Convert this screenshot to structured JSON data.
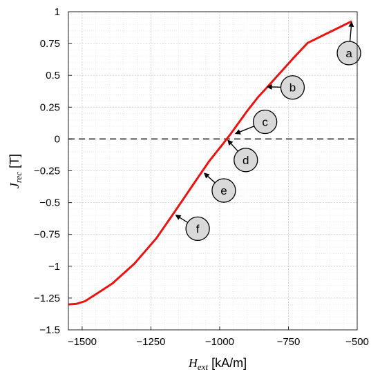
{
  "chart_data": {
    "type": "line",
    "title": "",
    "xlabel": {
      "symbol": "H",
      "subscript": "ext",
      "unit": " [kA/m]"
    },
    "ylabel": {
      "symbol": "J",
      "subscript": "rec",
      "unit": " [T]"
    },
    "xlim": [
      -1550,
      -500
    ],
    "ylim": [
      -1.5,
      1
    ],
    "x_ticks": [
      -1500,
      -1250,
      -1000,
      -750,
      -500
    ],
    "x_tick_labels": [
      "−1500",
      "−1250",
      "−1000",
      "−750",
      "−500"
    ],
    "y_ticks": [
      1,
      0.75,
      0.5,
      0.25,
      0,
      -0.25,
      -0.5,
      -0.75,
      -1,
      -1.25,
      -1.5
    ],
    "y_tick_labels": [
      "1",
      "0.75",
      "0.5",
      "0.25",
      "0",
      "−0.25",
      "−0.5",
      "−0.75",
      "−1",
      "−1.25",
      "−1.5"
    ],
    "grid": true,
    "minor_grid": true,
    "legend": "none",
    "series": [
      {
        "color": "#ee1111",
        "x": [
          -1550,
          -1520,
          -1490,
          -1450,
          -1390,
          -1310,
          -1230,
          -1160,
          -1100,
          -1040,
          -985,
          -960,
          -940,
          -900,
          -860,
          -830,
          -780,
          -730,
          -680,
          -600,
          -520
        ],
        "y": [
          -1.3,
          -1.295,
          -1.275,
          -1.22,
          -1.135,
          -0.98,
          -0.78,
          -0.56,
          -0.37,
          -0.18,
          -0.03,
          0.04,
          0.1,
          0.22,
          0.33,
          0.4,
          0.52,
          0.64,
          0.755,
          0.84,
          0.925
        ]
      }
    ],
    "reference_line": {
      "y": 0,
      "style": "dashed",
      "color": "#555555"
    },
    "annotations": [
      {
        "label": "a",
        "point_x": -520,
        "point_y": 0.925,
        "label_x": -530,
        "label_y": 0.675
      },
      {
        "label": "b",
        "point_x": -830,
        "point_y": 0.41,
        "label_x": -735,
        "label_y": 0.405
      },
      {
        "label": "c",
        "point_x": -945,
        "point_y": 0.04,
        "label_x": -835,
        "label_y": 0.135
      },
      {
        "label": "d",
        "point_x": -972,
        "point_y": -0.005,
        "label_x": -905,
        "label_y": -0.165
      },
      {
        "label": "e",
        "point_x": -1058,
        "point_y": -0.265,
        "label_x": -985,
        "label_y": -0.405
      },
      {
        "label": "f",
        "point_x": -1162,
        "point_y": -0.595,
        "label_x": -1080,
        "label_y": -0.705
      }
    ]
  }
}
